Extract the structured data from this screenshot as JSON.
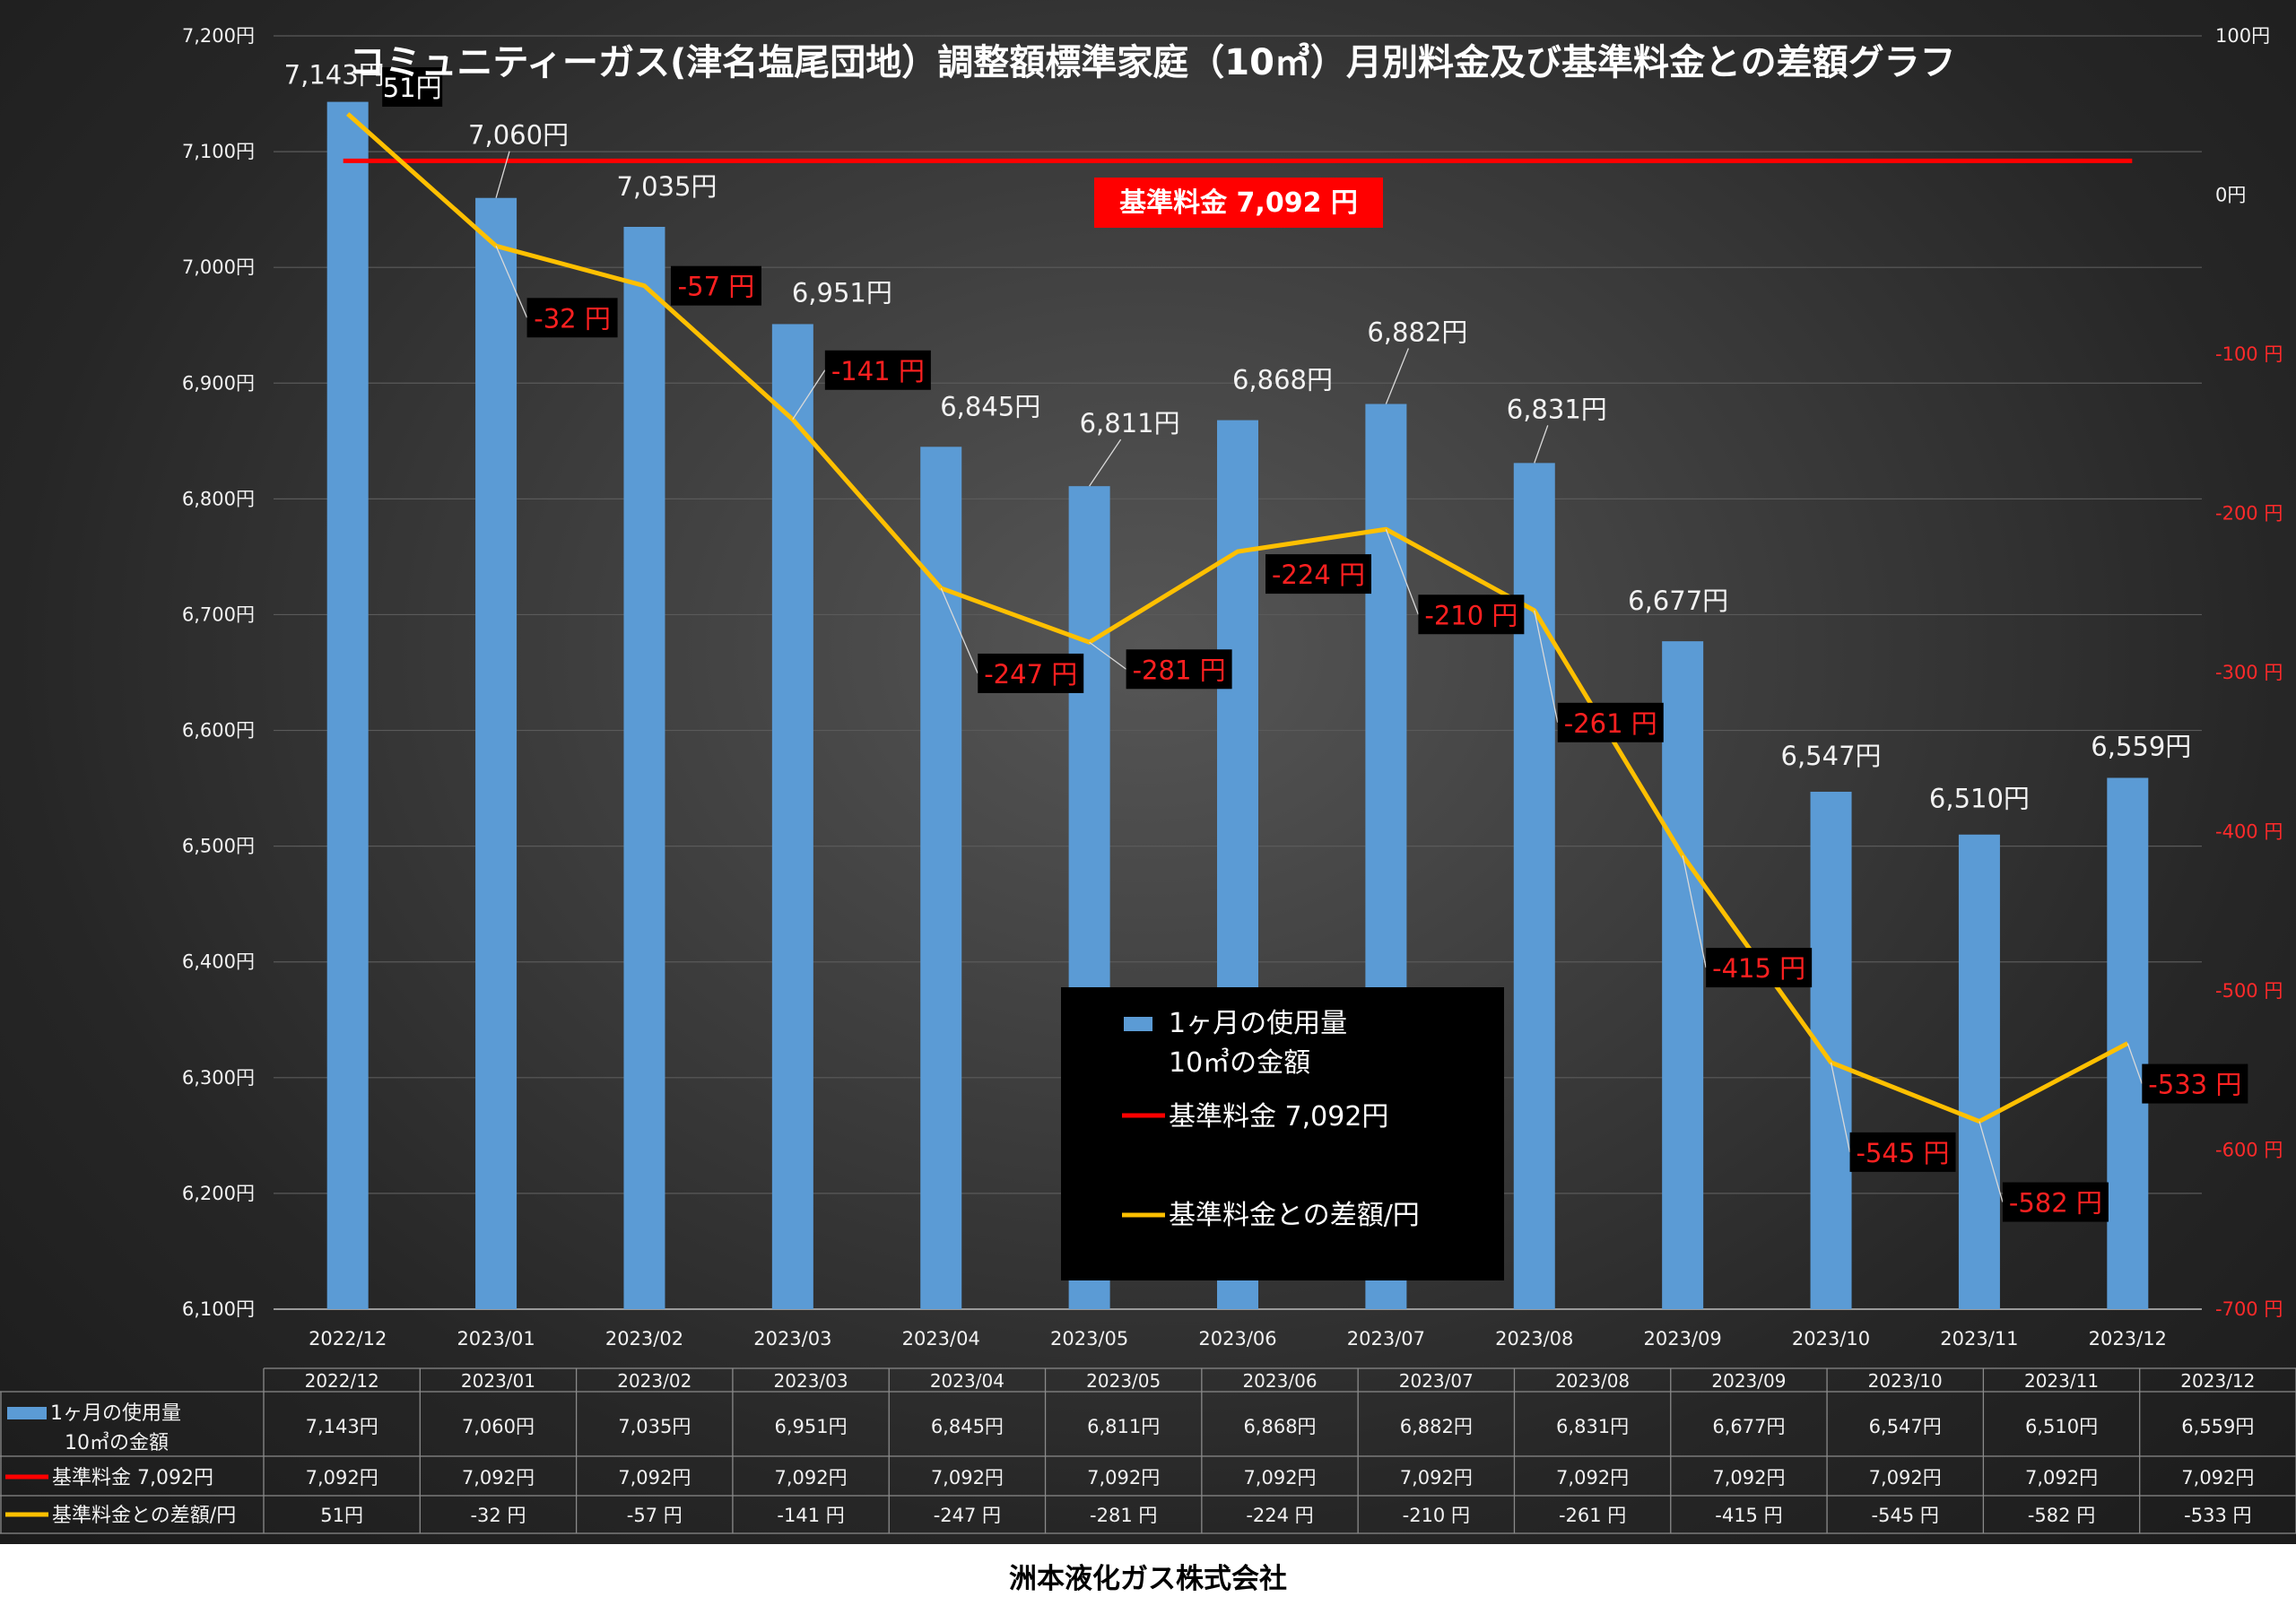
{
  "chart_data": {
    "type": "bar",
    "title": "コミュニティーガス(津名塩尾団地）調整額標準家庭（10㎥）月別料金及び基準料金との差額グラフ",
    "categories": [
      "2022/12",
      "2023/01",
      "2023/02",
      "2023/03",
      "2023/04",
      "2023/05",
      "2023/06",
      "2023/07",
      "2023/08",
      "2023/09",
      "2023/10",
      "2023/11",
      "2023/12"
    ],
    "series": [
      {
        "name": "1ヶ月の使用量 10㎥の金額",
        "kind": "bar",
        "axis": "left",
        "color": "#5b9bd5",
        "values": [
          7143,
          7060,
          7035,
          6951,
          6845,
          6811,
          6868,
          6882,
          6831,
          6677,
          6547,
          6510,
          6559
        ]
      },
      {
        "name": "基準料金  7,092円",
        "kind": "line",
        "axis": "left",
        "color": "#ff0000",
        "values": [
          7092,
          7092,
          7092,
          7092,
          7092,
          7092,
          7092,
          7092,
          7092,
          7092,
          7092,
          7092,
          7092
        ]
      },
      {
        "name": "基準料金との差額/円",
        "kind": "line",
        "axis": "right",
        "color": "#ffc000",
        "values": [
          51,
          -32,
          -57,
          -141,
          -247,
          -281,
          -224,
          -210,
          -261,
          -415,
          -545,
          -582,
          -533
        ]
      }
    ],
    "left_axis": {
      "min": 6100,
      "max": 7200,
      "step": 100,
      "ticks": [
        "6,100円",
        "6,200円",
        "6,300円",
        "6,400円",
        "6,500円",
        "6,600円",
        "6,700円",
        "6,800円",
        "6,900円",
        "7,000円",
        "7,100円",
        "7,200円"
      ]
    },
    "right_axis": {
      "min": -700,
      "max": 100,
      "step": 100,
      "ticks": [
        "-700 円",
        "-600 円",
        "-500 円",
        "-400 円",
        "-300 円",
        "-200 円",
        "-100 円",
        "0円",
        "100円"
      ]
    },
    "bar_labels": [
      "7,143円",
      "7,060円",
      "7,035円",
      "6,951円",
      "6,845円",
      "6,811円",
      "6,868円",
      "6,882円",
      "6,831円",
      "6,677円",
      "6,547円",
      "6,510円",
      "6,559円"
    ],
    "diff_labels": [
      "51円",
      "-32 円",
      "-57 円",
      "-141 円",
      "-247 円",
      "-281 円",
      "-224 円",
      "-210 円",
      "-261 円",
      "-415 円",
      "-545 円",
      "-582 円",
      "-533 円"
    ],
    "baseline_badge": "基準料金  7,092  円",
    "legend": {
      "placement": "bottom-center",
      "items": [
        {
          "line1": "1ヶ月の使用量",
          "line2": "10㎥の金額",
          "color": "#5b9bd5",
          "kind": "bar"
        },
        {
          "line1": "基準料金  7,092円",
          "color": "#ff0000",
          "kind": "line"
        },
        {
          "line1": "基準料金との差額/円",
          "color": "#ffc000",
          "kind": "line"
        }
      ]
    },
    "data_table": {
      "rows": [
        {
          "label1": "1ヶ月の使用量",
          "label2": "10㎥の金額",
          "color": "#5b9bd5",
          "kind": "bar",
          "cells": [
            "7,143円",
            "7,060円",
            "7,035円",
            "6,951円",
            "6,845円",
            "6,811円",
            "6,868円",
            "6,882円",
            "6,831円",
            "6,677円",
            "6,547円",
            "6,510円",
            "6,559円"
          ]
        },
        {
          "label1": "基準料金  7,092円",
          "color": "#ff0000",
          "kind": "line",
          "cells": [
            "7,092円",
            "7,092円",
            "7,092円",
            "7,092円",
            "7,092円",
            "7,092円",
            "7,092円",
            "7,092円",
            "7,092円",
            "7,092円",
            "7,092円",
            "7,092円",
            "7,092円"
          ]
        },
        {
          "label1": "基準料金との差額/円",
          "color": "#ffc000",
          "kind": "line",
          "cells": [
            "51円",
            "-32 円",
            "-57 円",
            "-141 円",
            "-247 円",
            "-281 円",
            "-224 円",
            "-210 円",
            "-261 円",
            "-415 円",
            "-545 円",
            "-582 円",
            "-533 円"
          ]
        }
      ]
    }
  },
  "footer": {
    "company": "洲本液化ガス株式会社"
  }
}
